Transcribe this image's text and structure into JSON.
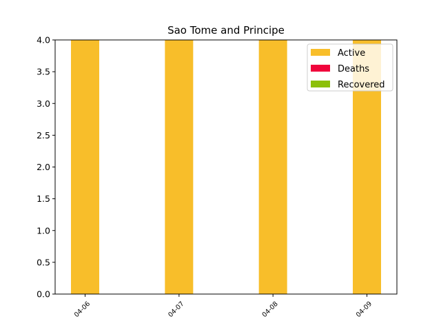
{
  "chart_data": {
    "type": "bar",
    "stacked": true,
    "title": "Sao Tome and Principe",
    "xlabel": "",
    "ylabel": "",
    "categories": [
      "04-06",
      "04-07",
      "04-08",
      "04-09"
    ],
    "series": [
      {
        "name": "Active",
        "color": "#f8be2a",
        "values": [
          4,
          4,
          4,
          4
        ]
      },
      {
        "name": "Deaths",
        "color": "#f0053c",
        "values": [
          0,
          0,
          0,
          0
        ]
      },
      {
        "name": "Recovered",
        "color": "#8cc00a",
        "values": [
          0,
          0,
          0,
          0
        ]
      }
    ],
    "ylim": [
      0,
      4.0
    ],
    "yticks": [
      "0.0",
      "0.5",
      "1.0",
      "1.5",
      "2.0",
      "2.5",
      "3.0",
      "3.5",
      "4.0"
    ],
    "xtick_rotation": 45,
    "grid": false,
    "legend_position": "upper-right"
  }
}
